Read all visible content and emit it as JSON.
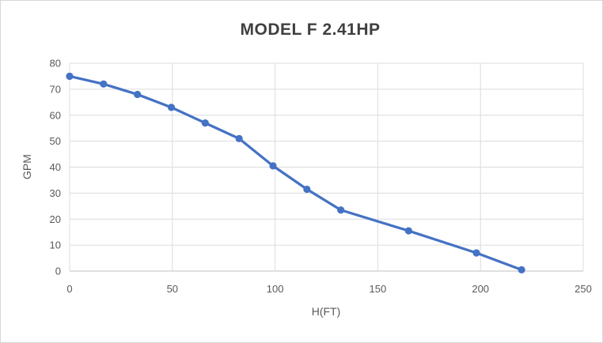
{
  "window": {
    "background": "#ffffff",
    "border_color": "#d7d7d7"
  },
  "chart_data": {
    "type": "line",
    "title": "MODEL F 2.41HP",
    "xlabel": "H(FT)",
    "ylabel": "GPM",
    "x": [
      0,
      16.5,
      33,
      49.5,
      66,
      82.5,
      99,
      115.5,
      132,
      165,
      198,
      220
    ],
    "y": [
      75,
      72,
      68,
      63,
      57,
      51,
      40.5,
      31.5,
      23.5,
      15.5,
      7,
      0.5
    ],
    "xlim": [
      0,
      250
    ],
    "ylim": [
      0,
      80
    ],
    "xticks": [
      0,
      50,
      100,
      150,
      200,
      250
    ],
    "yticks": [
      0,
      10,
      20,
      30,
      40,
      50,
      60,
      70,
      80
    ],
    "grid": true,
    "legend_position": "none",
    "marker": "circle",
    "series_color": "#4472C4",
    "gridline_color": "#DCDCDC",
    "axis_line_color": "#BFBFBF",
    "tick_label_color": "#595959",
    "axis_title_color": "#595959",
    "title_color": "#404040"
  }
}
